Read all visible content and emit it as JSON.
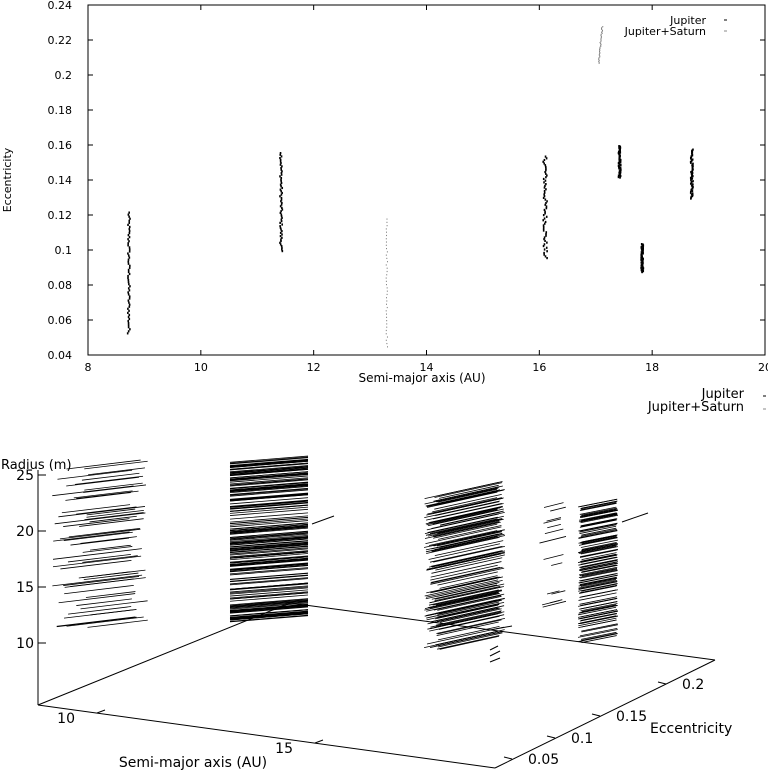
{
  "chart_data": [
    {
      "type": "scatter",
      "xlabel": "Semi-major axis (AU)",
      "ylabel": "Eccentricity",
      "xlim": [
        8,
        20
      ],
      "ylim": [
        0.04,
        0.24
      ],
      "x_ticks": [
        "8",
        "10",
        "12",
        "14",
        "16",
        "18",
        "20"
      ],
      "y_ticks": [
        "0.04",
        "0.06",
        "0.08",
        "0.1",
        "0.12",
        "0.14",
        "0.16",
        "0.18",
        "0.2",
        "0.22",
        "0.24"
      ],
      "legend_position": "top-right",
      "series": [
        {
          "name": "Jupiter",
          "color": "#000000",
          "clusters": [
            {
              "x": 8.72,
              "e": [
                0.053,
                0.122
              ]
            },
            {
              "x": 11.42,
              "e": [
                0.1,
                0.156
              ]
            },
            {
              "x": 16.1,
              "e": [
                0.096,
                0.154
              ]
            },
            {
              "x": 17.42,
              "e": [
                0.142,
                0.16
              ]
            },
            {
              "x": 17.82,
              "e": [
                0.088,
                0.104
              ]
            },
            {
              "x": 18.7,
              "e": [
                0.13,
                0.158
              ]
            }
          ]
        },
        {
          "name": "Jupiter+Saturn",
          "color": "#777777",
          "clusters": [
            {
              "x": 13.3,
              "e": [
                0.045,
                0.118
              ]
            },
            {
              "x": 17.12,
              "e": [
                0.207,
                0.228
              ]
            }
          ]
        }
      ]
    },
    {
      "type": "scatter3d",
      "xlabel": "Semi-major axis (AU)",
      "ylabel": "Eccentricity",
      "zlabel": "Radius (m)",
      "x_ticks": [
        "10",
        "15"
      ],
      "y_ticks": [
        "0.05",
        "0.1",
        "0.15",
        "0.2"
      ],
      "z_ticks": [
        "10",
        "15",
        "20",
        "25"
      ],
      "legend_position": "top-right",
      "series": [
        {
          "name": "Jupiter",
          "color": "#000000"
        },
        {
          "name": "Jupiter+Saturn",
          "color": "#777777"
        }
      ],
      "radius_range": [
        11,
        26
      ]
    }
  ]
}
